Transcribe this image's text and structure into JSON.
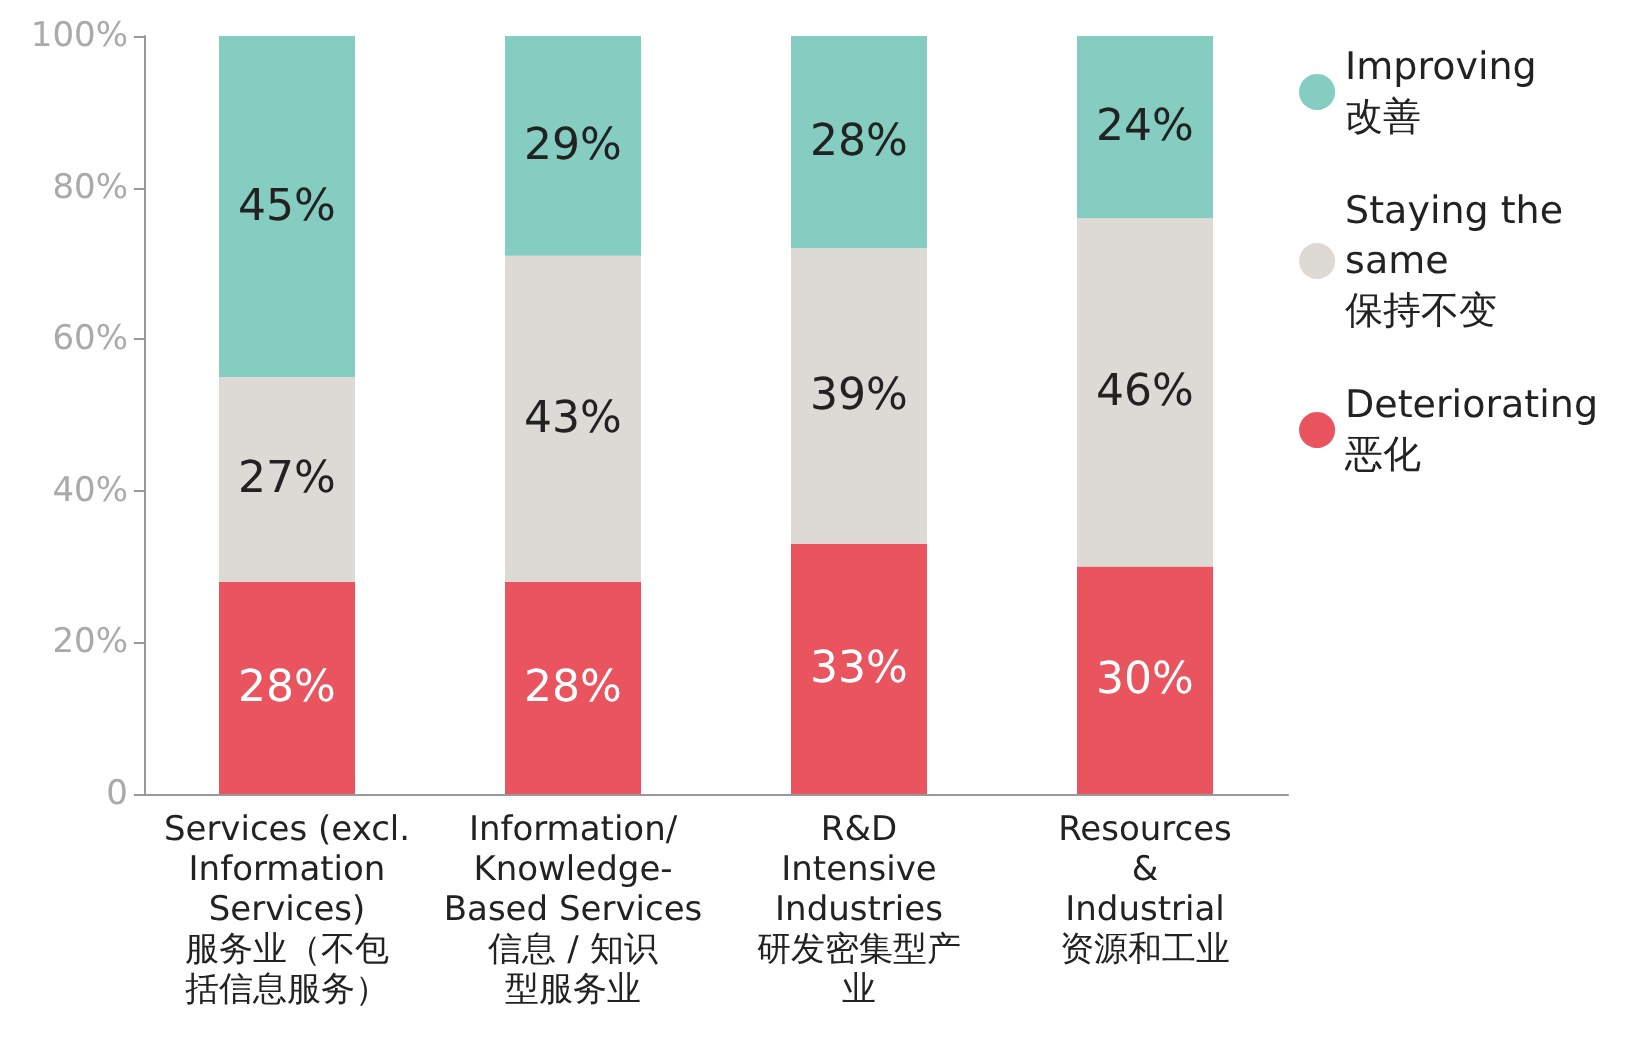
{
  "chart_data": {
    "type": "bar",
    "stacked": true,
    "categories": [
      "Services (excl.\nInformation\nServices)\n服务业（不包括信息服务）",
      "Information/\nKnowledge-\nBased Services\n信息 / 知识型服务业",
      "R&D\nIntensive\nIndustries\n研发密集型产业",
      "Resources\n&\nIndustrial\n资源和工业"
    ],
    "series": [
      {
        "name": "Deteriorating\n恶化",
        "color": "#e9545f",
        "values": [
          28,
          28,
          33,
          30
        ],
        "value_labels": [
          "28%",
          "28%",
          "33%",
          "30%"
        ]
      },
      {
        "name": "Staying the\nsame\n保持不变",
        "color": "#ddd9d5",
        "values": [
          27,
          43,
          39,
          46
        ],
        "value_labels": [
          "27%",
          "43%",
          "39%",
          "46%"
        ]
      },
      {
        "name": "Improving\n改善",
        "color": "#85cdc1",
        "values": [
          45,
          29,
          28,
          24
        ],
        "value_labels": [
          "45%",
          "29%",
          "28%",
          "24%"
        ]
      }
    ],
    "ylim": [
      0,
      100
    ],
    "yticks": [
      {
        "value": 0,
        "label": "0"
      },
      {
        "value": 20,
        "label": "20%"
      },
      {
        "value": 40,
        "label": "40%"
      },
      {
        "value": 60,
        "label": "60%"
      },
      {
        "value": 80,
        "label": "80%"
      },
      {
        "value": 100,
        "label": "100%"
      }
    ],
    "grid": false,
    "legend": "top right"
  }
}
